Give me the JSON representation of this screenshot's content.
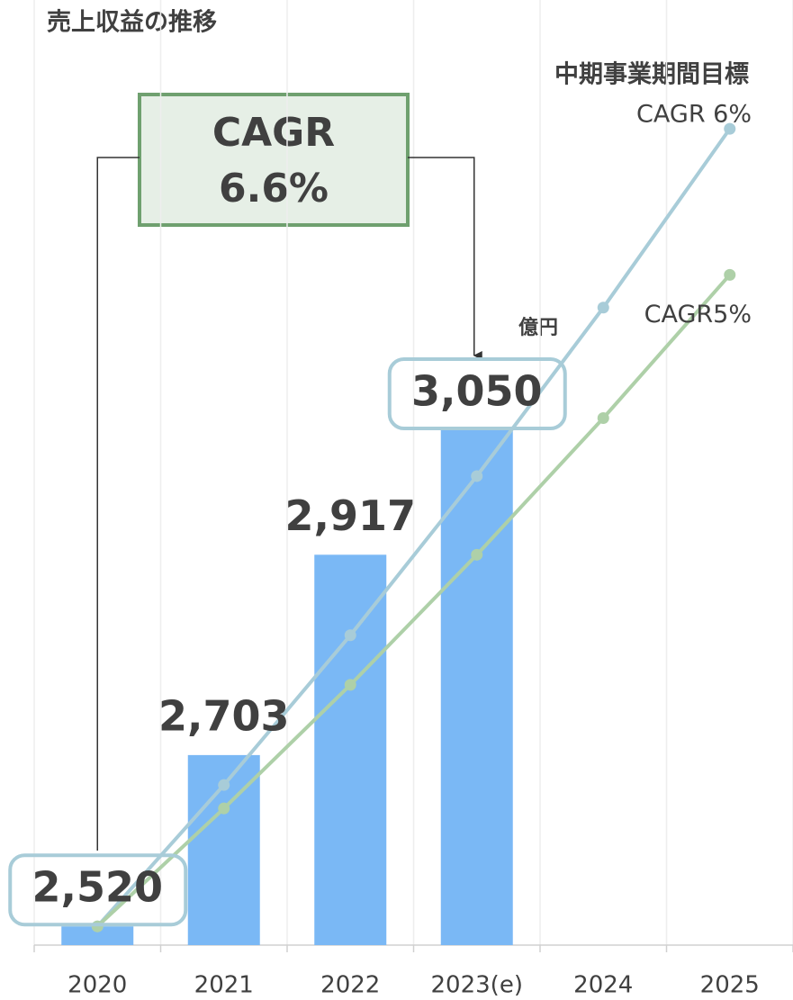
{
  "chart_data": {
    "type": "bar",
    "title": "売上収益の推移",
    "target_label": "中期事業期間目標",
    "unit": "億円",
    "annotation": [
      "CAGR",
      "6.6%"
    ],
    "categories": [
      "2020",
      "2021",
      "2022",
      "2023(e)",
      "2024",
      "2025"
    ],
    "values": [
      2520,
      2703,
      2917,
      3050,
      null,
      null
    ],
    "value_labels": [
      "2,520",
      "2,703",
      "2,917",
      "3,050",
      null,
      null
    ],
    "color": "#7ab8f5",
    "boxed_labels": [
      0,
      3
    ],
    "series": [
      {
        "name": "CAGR 6%",
        "color": "#a8ccd8",
        "values": [
          2520,
          2671,
          2831,
          3001,
          3181,
          3372
        ]
      },
      {
        "name": "CAGR5%",
        "color": "#aed0a8",
        "values": [
          2520,
          2646,
          2778,
          2917,
          3063,
          3216
        ]
      }
    ],
    "ylim": [
      2500,
      3500
    ],
    "grid": true
  }
}
